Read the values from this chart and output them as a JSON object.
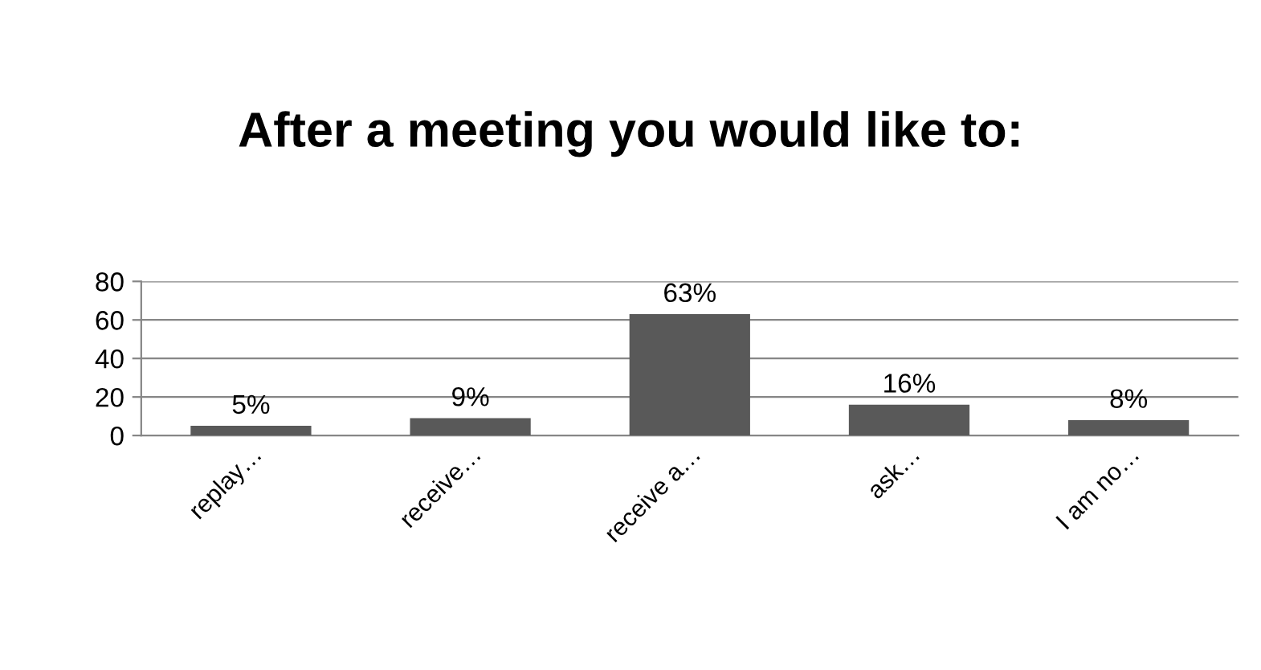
{
  "chart_data": {
    "type": "bar",
    "title": "After a meeting you would like to:",
    "categories": [
      "replay…",
      "receive…",
      "receive a…",
      "ask…",
      "I am no…"
    ],
    "values": [
      5,
      9,
      63,
      16,
      8
    ],
    "value_labels": [
      "5%",
      "9%",
      "63%",
      "16%",
      "8%"
    ],
    "color": "#595959",
    "ylim": [
      0,
      80
    ],
    "yticks": [
      0,
      20,
      40,
      60,
      80
    ],
    "grid": "y"
  }
}
